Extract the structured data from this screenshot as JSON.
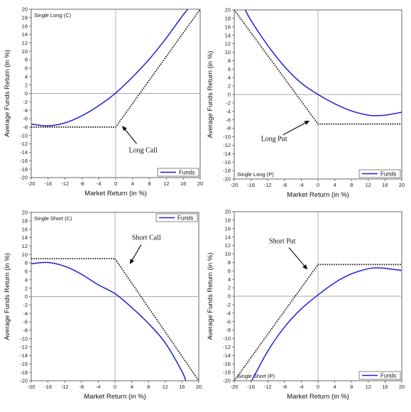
{
  "chart_data": [
    {
      "type": "line",
      "panel_label": "Single Long (C)",
      "xlabel": "Market Return (in %)",
      "ylabel": "Average Funds Return (in %)",
      "xlim": [
        -20,
        20
      ],
      "ylim": [
        -20,
        20
      ],
      "x_ticks": [
        -20,
        -16,
        -12,
        -8,
        -4,
        0,
        4,
        8,
        12,
        16,
        20
      ],
      "y_ticks": [
        20,
        18,
        16,
        14,
        12,
        10,
        8,
        6,
        4,
        2,
        0,
        -2,
        -4,
        -6,
        -8,
        -10,
        -12,
        -14,
        -16,
        -18,
        -20
      ],
      "legend": {
        "label": "Funds",
        "position": "bottom-right"
      },
      "series": [
        {
          "name": "Funds",
          "color": "#1f1fd6",
          "style": "solid",
          "x": [
            -20,
            -16,
            -12,
            -8,
            -4,
            0,
            4,
            8,
            12,
            16,
            17.5
          ],
          "y": [
            -7.3,
            -7.7,
            -7.0,
            -5.3,
            -2.9,
            0.1,
            3.9,
            8.2,
            13.2,
            18.7,
            20.5
          ]
        },
        {
          "name": "",
          "color": "#111111",
          "style": "dotted",
          "x": [
            -20,
            0,
            20
          ],
          "y": [
            -8,
            -8,
            20
          ]
        }
      ],
      "annotation": {
        "text": "Long Call",
        "arrow_to": [
          1.5,
          -7.7
        ],
        "text_at": [
          6.5,
          -14
        ]
      }
    },
    {
      "type": "line",
      "panel_label": "Single Long (P)",
      "xlabel": "Market Return (in %)",
      "ylabel": "Average Funds Return (in %)",
      "xlim": [
        -20,
        20
      ],
      "ylim": [
        -20,
        20
      ],
      "x_ticks": [
        -20,
        -16,
        -12,
        -8,
        -4,
        0,
        4,
        8,
        12,
        16,
        20
      ],
      "y_ticks": [
        20,
        18,
        16,
        14,
        12,
        10,
        8,
        6,
        4,
        2,
        0,
        -2,
        -4,
        -6,
        -8,
        -10,
        -12,
        -14,
        -16,
        -18,
        -20
      ],
      "legend": {
        "label": "Funds",
        "position": "bottom-right"
      },
      "series": [
        {
          "name": "Funds",
          "color": "#1f1fd6",
          "style": "solid",
          "x": [
            -17.5,
            -16,
            -12,
            -8,
            -4,
            0,
            4,
            8,
            12,
            14,
            16,
            20
          ],
          "y": [
            20.3,
            17.5,
            11.6,
            6.6,
            2.7,
            0,
            -2.2,
            -3.9,
            -4.9,
            -5.0,
            -4.9,
            -4.2
          ]
        },
        {
          "name": "",
          "color": "#111111",
          "style": "dotted",
          "x": [
            -20,
            0,
            20
          ],
          "y": [
            20,
            -7,
            -7
          ]
        }
      ],
      "annotation": {
        "text": "Long Put",
        "arrow_to": [
          -2,
          -6.2
        ],
        "text_at": [
          -10.5,
          -11
        ]
      }
    },
    {
      "type": "line",
      "panel_label": "Single Short (C)",
      "xlabel": "Market Return (in %)",
      "ylabel": "Average Funds Return (in %)",
      "xlim": [
        -20,
        20
      ],
      "ylim": [
        -20,
        20
      ],
      "x_ticks": [
        -20,
        -16,
        -12,
        -8,
        -4,
        0,
        4,
        8,
        12,
        16,
        20
      ],
      "y_ticks": [
        20,
        18,
        16,
        14,
        12,
        10,
        8,
        6,
        4,
        2,
        0,
        -2,
        -4,
        -6,
        -8,
        -10,
        -12,
        -14,
        -16,
        -18,
        -20
      ],
      "legend": {
        "label": "Funds",
        "position": "top-right"
      },
      "series": [
        {
          "name": "Funds",
          "color": "#1f1fd6",
          "style": "solid",
          "x": [
            -20,
            -16,
            -12,
            -8,
            -4,
            0,
            4,
            8,
            12,
            16,
            17
          ],
          "y": [
            7.8,
            8.1,
            7.2,
            5.3,
            2.8,
            0.7,
            -2.6,
            -6.4,
            -11.0,
            -17.8,
            -20.3
          ]
        },
        {
          "name": "",
          "color": "#111111",
          "style": "dotted",
          "x": [
            -20,
            0,
            20
          ],
          "y": [
            9,
            9,
            -20
          ]
        }
      ],
      "annotation": {
        "text": "Short Call",
        "arrow_to": [
          3.5,
          7.7
        ],
        "text_at": [
          7.5,
          13.5
        ]
      }
    },
    {
      "type": "line",
      "panel_label": "Single Short (P)",
      "xlabel": "Market Return (in %)",
      "ylabel": "Average Funds Return (in %)",
      "xlim": [
        -20,
        20
      ],
      "ylim": [
        -20,
        20
      ],
      "x_ticks": [
        -20,
        -16,
        -12,
        -8,
        -4,
        0,
        4,
        8,
        12,
        16,
        20
      ],
      "y_ticks": [
        20,
        18,
        16,
        14,
        12,
        10,
        8,
        6,
        4,
        2,
        0,
        -2,
        -4,
        -6,
        -8,
        -10,
        -12,
        -14,
        -16,
        -18,
        -20
      ],
      "legend": {
        "label": "Funds",
        "position": "bottom-right"
      },
      "series": [
        {
          "name": "Funds",
          "color": "#1f1fd6",
          "style": "solid",
          "x": [
            -16,
            -12,
            -8,
            -4,
            0,
            4,
            8,
            12,
            14,
            16,
            20
          ],
          "y": [
            -20.3,
            -13.0,
            -7.3,
            -3.0,
            0.3,
            3.2,
            5.3,
            6.5,
            6.7,
            6.6,
            6.1
          ]
        },
        {
          "name": "",
          "color": "#111111",
          "style": "dotted",
          "x": [
            -20,
            0,
            20
          ],
          "y": [
            -20,
            7.5,
            7.5
          ]
        }
      ],
      "annotation": {
        "text": "Short Put",
        "arrow_to": [
          -2.5,
          6.3
        ],
        "text_at": [
          -8.5,
          12.5
        ]
      }
    }
  ]
}
